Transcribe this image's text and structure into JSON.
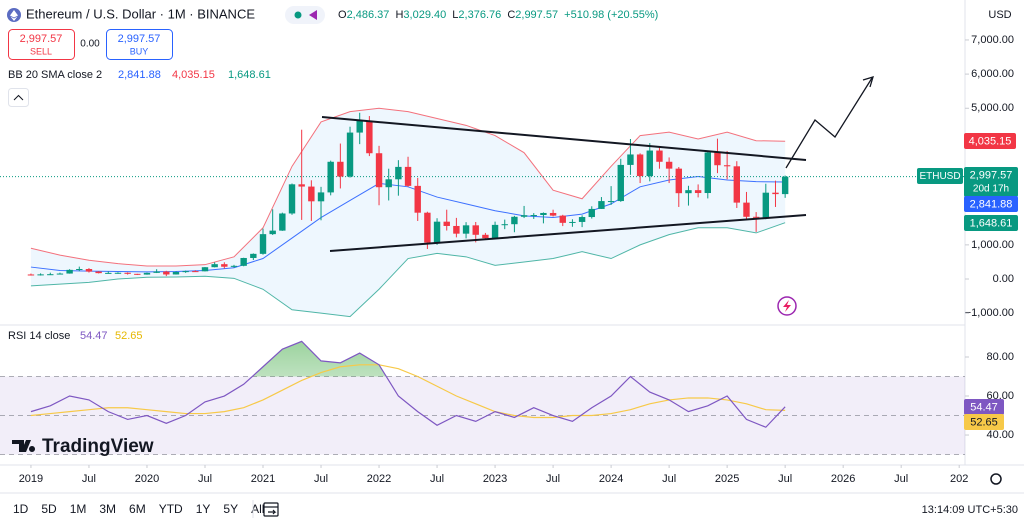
{
  "ui": {
    "symbol": "Ethereum / U.S. Dollar · 1M · BINANCE",
    "ohlc": [
      {
        "k": "O",
        "v": "2,486.37"
      },
      {
        "k": "H",
        "v": "3,029.40"
      },
      {
        "k": "L",
        "v": "2,376.76"
      },
      {
        "k": "C",
        "v": "2,997.57"
      }
    ],
    "change": "+510.98 (+20.55%)",
    "sell": {
      "price": "2,997.57",
      "label": "SELL"
    },
    "spread": "0.00",
    "buy": {
      "price": "2,997.57",
      "label": "BUY"
    },
    "currency": "USD",
    "ticker_tag": "ETHUSD",
    "countdown": "20d 17h",
    "logo": "TradingView",
    "timeframes": [
      "1D",
      "5D",
      "1M",
      "3M",
      "6M",
      "YTD",
      "1Y",
      "5Y",
      "All"
    ],
    "clock": "13:14:09 UTC+5:30"
  },
  "chart_data": [
    {
      "type": "candlestick",
      "up_color": "#089981",
      "down_color": "#f23645",
      "close_label": "2,997.57",
      "open": [
        133,
        107,
        136,
        141,
        160,
        268,
        293,
        218,
        172,
        180,
        183,
        152,
        130,
        180,
        218,
        133,
        206,
        231,
        226,
        346,
        435,
        360,
        386,
        616,
        737,
        1314,
        1417,
        1919,
        2773,
        2707,
        2275,
        2536,
        3433,
        3001,
        4288,
        4631,
        3683,
        2688,
        2920,
        3283,
        2727,
        1942,
        1067,
        1679,
        1553,
        1328,
        1572,
        1295,
        1196,
        1585,
        1605,
        1822,
        1869,
        1874,
        1934,
        1856,
        1645,
        1671,
        1815,
        2052,
        2282,
        2283,
        3341,
        3647,
        3014,
        3762,
        3433,
        3232,
        2513,
        2602,
        2518,
        3705,
        3332,
        3300,
        2237,
        1822,
        1794,
        2528,
        2486.37
      ],
      "high": [
        160,
        166,
        186,
        186,
        288,
        363,
        320,
        229,
        224,
        199,
        194,
        152,
        186,
        287,
        240,
        227,
        247,
        256,
        350,
        488,
        490,
        415,
        623,
        750,
        1475,
        2041,
        1944,
        2797,
        4372,
        2891,
        2699,
        3466,
        3967,
        4460,
        4868,
        4772,
        3900,
        3230,
        3480,
        3580,
        2960,
        1970,
        1780,
        2030,
        1790,
        1665,
        1670,
        1350,
        1680,
        1740,
        1850,
        2140,
        1930,
        1950,
        2030,
        1880,
        1750,
        1865,
        2130,
        2400,
        2720,
        3520,
        4100,
        3680,
        3980,
        3890,
        3560,
        3280,
        2730,
        2770,
        3720,
        4110,
        3750,
        3450,
        2550,
        1960,
        2790,
        2880,
        3029.4
      ],
      "low": [
        101,
        102,
        128,
        138,
        157,
        230,
        190,
        163,
        156,
        154,
        130,
        117,
        126,
        175,
        86,
        130,
        181,
        215,
        221,
        340,
        307,
        335,
        373,
        557,
        714,
        1290,
        1410,
        1880,
        1731,
        1700,
        1719,
        2450,
        2652,
        2970,
        3950,
        3600,
        2160,
        2300,
        2440,
        2700,
        1700,
        880,
        1000,
        1420,
        1220,
        1190,
        1073,
        1155,
        1190,
        1460,
        1370,
        1785,
        1760,
        1630,
        1830,
        1550,
        1530,
        1520,
        1770,
        2050,
        2170,
        2260,
        3050,
        2810,
        2860,
        3230,
        2810,
        2110,
        2150,
        2390,
        2360,
        3100,
        2920,
        2080,
        1750,
        1380,
        1750,
        2110,
        2376.76
      ],
      "close": [
        107,
        136,
        141,
        160,
        268,
        293,
        218,
        172,
        180,
        183,
        152,
        130,
        180,
        218,
        133,
        206,
        231,
        226,
        346,
        435,
        360,
        386,
        616,
        737,
        1314,
        1417,
        1919,
        2773,
        2707,
        2275,
        2536,
        3433,
        3001,
        4288,
        4631,
        3683,
        2688,
        2920,
        3283,
        2727,
        1942,
        1067,
        1679,
        1553,
        1328,
        1572,
        1295,
        1196,
        1585,
        1605,
        1822,
        1869,
        1874,
        1934,
        1856,
        1645,
        1671,
        1815,
        2052,
        2282,
        2283,
        3341,
        3647,
        3014,
        3762,
        3433,
        3232,
        2513,
        2602,
        2518,
        3705,
        3332,
        3300,
        2237,
        1822,
        1794,
        2528,
        2486.37,
        2997.57
      ],
      "indicator": {
        "label": "BB 20 SMA close 2",
        "x": [
          0,
          3,
          6,
          9,
          12,
          15,
          18,
          21,
          24,
          27,
          30,
          33,
          36,
          39,
          42,
          45,
          48,
          51,
          54,
          57,
          60,
          63,
          66,
          69,
          72,
          75,
          78
        ],
        "basis": {
          "color": "#2962ff",
          "values": [
            350,
            250,
            230,
            220,
            210,
            220,
            250,
            330,
            600,
            1200,
            1800,
            2300,
            2800,
            2700,
            2400,
            2200,
            2000,
            1850,
            1800,
            1900,
            2200,
            2700,
            2900,
            3000,
            2900,
            2850,
            2841.88
          ],
          "last_label": "2,841.88"
        },
        "upper": {
          "color": "#f23645",
          "values": [
            900,
            700,
            550,
            450,
            380,
            380,
            420,
            650,
            1500,
            3300,
            4600,
            4900,
            5000,
            4900,
            4700,
            4500,
            4200,
            3700,
            2600,
            2350,
            3300,
            4200,
            4300,
            4100,
            4300,
            4050,
            4035.15
          ],
          "last_label": "4,035.15"
        },
        "lower": {
          "color": "#089981",
          "values": [
            -200,
            -150,
            -100,
            0,
            50,
            60,
            80,
            20,
            -300,
            -900,
            -1000,
            -1100,
            -300,
            600,
            750,
            650,
            400,
            500,
            600,
            800,
            600,
            1000,
            1300,
            1500,
            1500,
            1350,
            1648.61
          ],
          "last_label": "1,648.61"
        },
        "fill": "#2196f3"
      },
      "xlim": [
        -3.2,
        96.6
      ],
      "xticks": [
        {
          "value": 0,
          "label": "2019"
        },
        {
          "value": 6,
          "label": "Jul"
        },
        {
          "value": 12,
          "label": "2020"
        },
        {
          "value": 18,
          "label": "Jul"
        },
        {
          "value": 24,
          "label": "2021"
        },
        {
          "value": 30,
          "label": "Jul"
        },
        {
          "value": 36,
          "label": "2022"
        },
        {
          "value": 42,
          "label": "Jul"
        },
        {
          "value": 48,
          "label": "2023"
        },
        {
          "value": 54,
          "label": "Jul"
        },
        {
          "value": 60,
          "label": "2024"
        },
        {
          "value": 66,
          "label": "Jul"
        },
        {
          "value": 72,
          "label": "2025"
        },
        {
          "value": 78,
          "label": "Jul"
        },
        {
          "value": 84,
          "label": "2026"
        },
        {
          "value": 90,
          "label": "Jul"
        },
        {
          "value": 96,
          "label": "202"
        }
      ],
      "ylim": [
        -1200,
        7350
      ],
      "yticks": [
        {
          "value": 7000,
          "label": "7,000.00"
        },
        {
          "value": 6000,
          "label": "6,000.00"
        },
        {
          "value": 5000,
          "label": "5,000.00"
        },
        {
          "value": 1000,
          "label": "1,000.00"
        },
        {
          "value": 0,
          "label": "0.00"
        },
        {
          "value": -1000,
          "label": "−1,000.00"
        }
      ]
    },
    {
      "type": "line",
      "title": "RSI 14 close",
      "x": [
        0,
        2,
        4,
        6,
        8,
        10,
        12,
        14,
        16,
        18,
        20,
        22,
        24,
        26,
        28,
        30,
        32,
        34,
        36,
        38,
        40,
        42,
        44,
        46,
        48,
        50,
        52,
        54,
        56,
        58,
        60,
        62,
        64,
        66,
        68,
        70,
        72,
        74,
        76,
        78
      ],
      "series": [
        {
          "color": "#7e57c2",
          "last_label": "54.47",
          "values": [
            52,
            55,
            60,
            58,
            52,
            48,
            50,
            46,
            50,
            57,
            60,
            66,
            75,
            84,
            88,
            78,
            77,
            82,
            76,
            60,
            52,
            45,
            50,
            47,
            52,
            49,
            54,
            50,
            47,
            54,
            60,
            70,
            62,
            58,
            52,
            55,
            60,
            48,
            44,
            54.47
          ]
        },
        {
          "color": "#f7c948",
          "last_label": "52.65",
          "values": [
            50,
            51,
            52,
            53,
            54,
            54,
            53,
            52,
            51,
            51,
            52,
            54,
            58,
            63,
            68,
            72,
            75,
            76,
            76,
            74,
            70,
            65,
            60,
            56,
            52,
            50,
            49,
            49,
            50,
            50,
            51,
            53,
            56,
            58,
            59,
            59,
            58,
            56,
            53,
            52.65
          ]
        }
      ],
      "levels": [
        30,
        50,
        70
      ],
      "band_color": "#7e57c2",
      "overbought_color": "#4caf50",
      "xlim": [
        -3.2,
        96.6
      ],
      "ylim": [
        27.2,
        92.3
      ],
      "yticks": [
        {
          "value": 80,
          "label": "80.00"
        },
        {
          "value": 60,
          "label": "60.00"
        },
        {
          "value": 40,
          "label": "40.00"
        }
      ]
    }
  ]
}
